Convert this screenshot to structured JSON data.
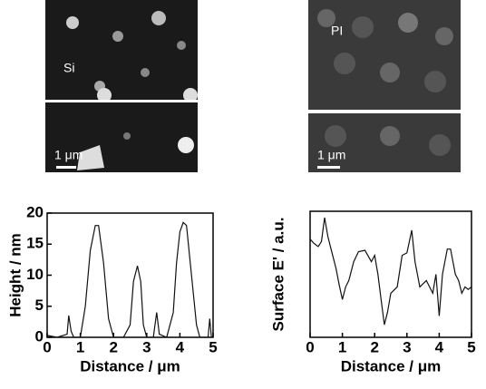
{
  "images": [
    {
      "label": "Si",
      "scale_bar": "1 μm"
    },
    {
      "label": "PI",
      "scale_bar": "1 μm"
    }
  ],
  "chart_data": [
    {
      "type": "line",
      "x_label": "Distance / μm",
      "y_label": "Height / nm",
      "xlim": [
        0,
        5
      ],
      "xticks": [
        0,
        1,
        2,
        3,
        4,
        5
      ],
      "ylim": [
        0,
        20
      ],
      "yticks": [
        0,
        5,
        10,
        15,
        20
      ],
      "x": [
        0,
        0.3,
        0.6,
        0.65,
        0.72,
        0.8,
        1.0,
        1.15,
        1.3,
        1.45,
        1.55,
        1.7,
        1.85,
        2.0,
        2.3,
        2.5,
        2.6,
        2.72,
        2.82,
        2.9,
        3.0,
        3.2,
        3.3,
        3.38,
        3.6,
        3.8,
        3.9,
        4.0,
        4.1,
        4.2,
        4.35,
        4.5,
        4.6,
        4.85,
        4.9,
        4.95
      ],
      "series": [
        {
          "color": "#111111",
          "values": [
            0.3,
            0,
            0.5,
            3.5,
            1,
            0,
            0,
            5,
            14,
            18,
            18,
            12,
            3,
            0,
            0,
            2,
            9,
            11.5,
            9,
            2,
            0,
            0,
            4,
            0.5,
            0,
            4,
            12,
            17,
            18.5,
            18,
            10,
            2,
            0,
            0,
            3,
            0
          ]
        }
      ]
    },
    {
      "type": "line",
      "x_label": "Distance / μm",
      "y_label": "Surface E' / a.u.",
      "xlim": [
        0,
        5
      ],
      "xticks": [
        0,
        1,
        2,
        3,
        4,
        5
      ],
      "ylim": [
        0,
        10
      ],
      "x": [
        0,
        0.1,
        0.25,
        0.35,
        0.45,
        0.55,
        0.65,
        0.8,
        0.9,
        1.0,
        1.1,
        1.2,
        1.35,
        1.5,
        1.7,
        1.9,
        2.0,
        2.1,
        2.2,
        2.3,
        2.4,
        2.5,
        2.7,
        2.85,
        3.0,
        3.15,
        3.25,
        3.4,
        3.6,
        3.8,
        3.9,
        4.0,
        4.1,
        4.25,
        4.35,
        4.5,
        4.6,
        4.7,
        4.8,
        4.9,
        5.0
      ],
      "series": [
        {
          "color": "#111111",
          "values": [
            7.8,
            7.5,
            7.2,
            7.6,
            9.5,
            8,
            7,
            5.5,
            4.2,
            3,
            4,
            4.5,
            6,
            6.8,
            6.9,
            6,
            6.5,
            5,
            3,
            1,
            2,
            3.5,
            4,
            6.5,
            6.7,
            8.5,
            6,
            4,
            4.5,
            3.5,
            5,
            1.7,
            5,
            7,
            7,
            5,
            4.5,
            3.5,
            4,
            3.8,
            4
          ]
        }
      ]
    }
  ]
}
